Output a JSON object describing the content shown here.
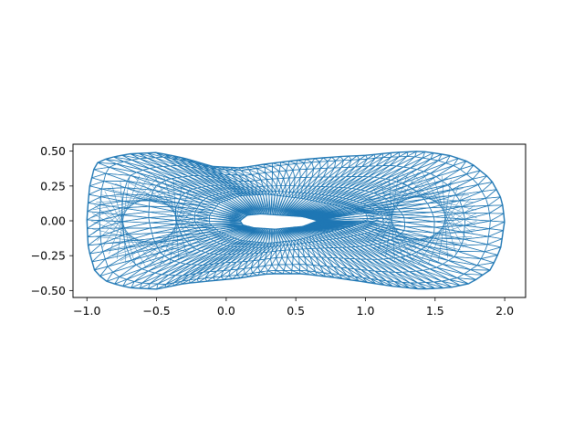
{
  "chart_data": {
    "type": "triangulation",
    "title": "",
    "xlabel": "",
    "ylabel": "",
    "xlim": [
      -1.1,
      2.15
    ],
    "ylim": [
      -0.55,
      0.55
    ],
    "aspect": "equal",
    "grid": false,
    "line_color": "#1f77b4",
    "xticks": [
      -1.0,
      -0.5,
      0.0,
      0.5,
      1.0,
      1.5,
      2.0
    ],
    "xtick_labels": [
      "−1.0",
      "−0.5",
      "0.0",
      "0.5",
      "1.0",
      "1.5",
      "2.0"
    ],
    "yticks": [
      0.5,
      0.25,
      0.0,
      -0.25,
      -0.5
    ],
    "ytick_labels": [
      "0.50",
      "0.25",
      "0.00",
      "−0.25",
      "−0.50"
    ],
    "series": [
      {
        "outer_boundary": [
          [
            -0.98,
            0.25
          ],
          [
            -0.94,
            0.41
          ],
          [
            -0.85,
            0.45
          ],
          [
            -0.7,
            0.48
          ],
          [
            -0.5,
            0.49
          ],
          [
            -0.3,
            0.45
          ],
          [
            -0.1,
            0.39
          ],
          [
            0.1,
            0.38
          ],
          [
            0.3,
            0.41
          ],
          [
            0.55,
            0.44
          ],
          [
            0.8,
            0.46
          ],
          [
            1.0,
            0.47
          ],
          [
            1.2,
            0.49
          ],
          [
            1.4,
            0.5
          ],
          [
            1.6,
            0.47
          ],
          [
            1.75,
            0.42
          ],
          [
            1.9,
            0.3
          ],
          [
            1.98,
            0.15
          ],
          [
            2.0,
            0.0
          ],
          [
            1.97,
            -0.2
          ],
          [
            1.9,
            -0.35
          ],
          [
            1.75,
            -0.45
          ],
          [
            1.6,
            -0.48
          ],
          [
            1.4,
            -0.49
          ],
          [
            1.2,
            -0.47
          ],
          [
            1.0,
            -0.44
          ],
          [
            0.8,
            -0.41
          ],
          [
            0.55,
            -0.38
          ],
          [
            0.3,
            -0.38
          ],
          [
            0.1,
            -0.41
          ],
          [
            -0.1,
            -0.43
          ],
          [
            -0.3,
            -0.45
          ],
          [
            -0.5,
            -0.49
          ],
          [
            -0.7,
            -0.48
          ],
          [
            -0.85,
            -0.44
          ],
          [
            -0.94,
            -0.37
          ],
          [
            -0.99,
            -0.2
          ],
          [
            -1.0,
            0.0
          ],
          [
            -0.99,
            0.15
          ]
        ],
        "inner_ring": [
          [
            -0.12,
            0.04
          ],
          [
            -0.05,
            0.13
          ],
          [
            0.1,
            0.18
          ],
          [
            0.3,
            0.19
          ],
          [
            0.55,
            0.16
          ],
          [
            0.8,
            0.11
          ],
          [
            1.0,
            0.06
          ],
          [
            1.02,
            0.0
          ],
          [
            0.9,
            -0.04
          ],
          [
            0.7,
            -0.09
          ],
          [
            0.5,
            -0.14
          ],
          [
            0.3,
            -0.16
          ],
          [
            0.1,
            -0.14
          ],
          [
            -0.05,
            -0.08
          ],
          [
            -0.12,
            -0.02
          ]
        ],
        "hole": [
          [
            0.1,
            0.0
          ],
          [
            0.15,
            0.04
          ],
          [
            0.25,
            0.05
          ],
          [
            0.4,
            0.04
          ],
          [
            0.55,
            0.03
          ],
          [
            0.66,
            0.0
          ],
          [
            0.55,
            -0.04
          ],
          [
            0.35,
            -0.06
          ],
          [
            0.2,
            -0.05
          ],
          [
            0.12,
            -0.03
          ]
        ]
      }
    ]
  }
}
